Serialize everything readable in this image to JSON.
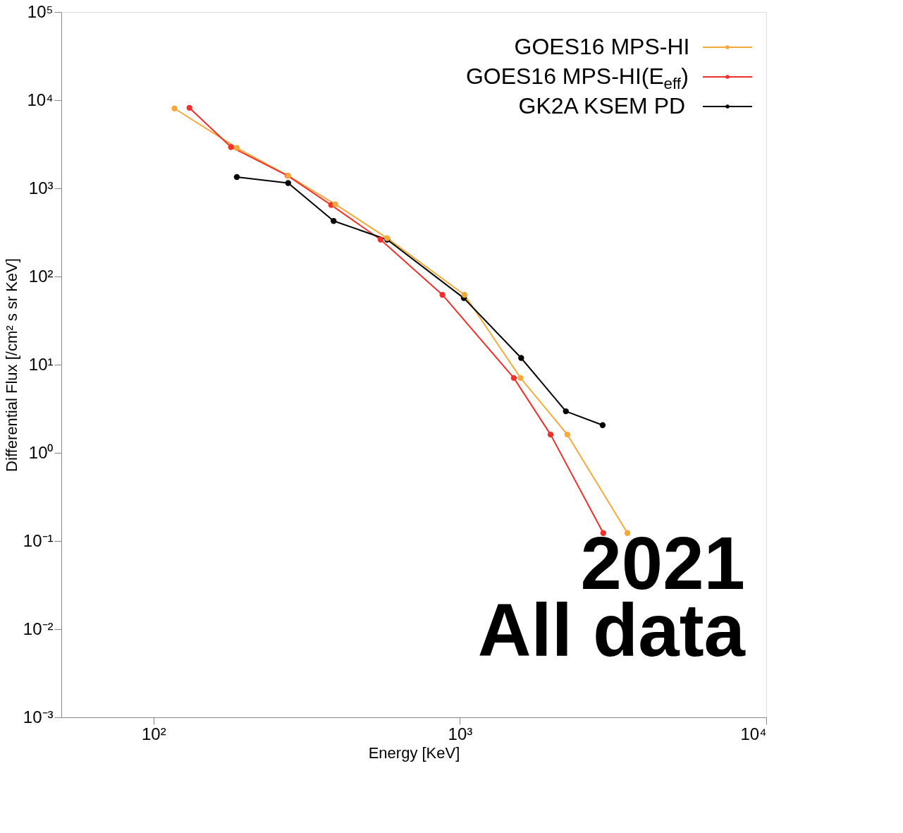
{
  "chart_data": {
    "type": "line",
    "xlabel": "Energy [KeV]",
    "ylabel": "Differential Flux [/cm² s sr KeV]",
    "log": "xy",
    "xlim": [
      50,
      10000
    ],
    "xticks": [
      {
        "value": 100,
        "label": "10²"
      },
      {
        "value": 1000,
        "label": "10³"
      },
      {
        "value": 10000,
        "label": "10⁴"
      }
    ],
    "ylim": [
      0.001,
      100000
    ],
    "yticks": [
      {
        "value": 0.001,
        "label": "10⁻³"
      },
      {
        "value": 0.01,
        "label": "10⁻²"
      },
      {
        "value": 0.1,
        "label": "10⁻¹"
      },
      {
        "value": 1,
        "label": "10⁰"
      },
      {
        "value": 10,
        "label": "10¹"
      },
      {
        "value": 100,
        "label": "10²"
      },
      {
        "value": 1000,
        "label": "10³"
      },
      {
        "value": 10000,
        "label": "10⁴"
      },
      {
        "value": 100000,
        "label": "10⁵"
      }
    ],
    "grid": false,
    "legend": "top right",
    "marker": "circle",
    "line_style": "solid",
    "series": [
      {
        "name": "GOES16 MPS-HI",
        "color": "#f5a93a",
        "x": [
          117,
          187,
          275,
          392,
          579,
          1035,
          1578,
          2243,
          3524
        ],
        "values": [
          8050,
          2880,
          1390,
          659,
          272,
          62,
          7.06,
          1.61,
          0.123
        ]
      },
      {
        "name": "GOES16 MPS-HI(E$_{eff}$)",
        "color": "#f0302a",
        "x": [
          131,
          179,
          274,
          380,
          551,
          877,
          1500,
          1977,
          2938
        ],
        "values": [
          8180,
          2940,
          1390,
          647,
          262,
          62,
          7.06,
          1.61,
          0.123
        ]
      },
      {
        "name": "GK2A KSEM PD",
        "color": "#000000",
        "x": [
          187,
          275,
          387,
          579,
          1030,
          1585,
          2218,
          2924
        ],
        "values": [
          1343,
          1148,
          427,
          262,
          56.9,
          11.9,
          2.96,
          2.06
        ]
      }
    ],
    "annotations": [
      "2021",
      "All data"
    ]
  }
}
